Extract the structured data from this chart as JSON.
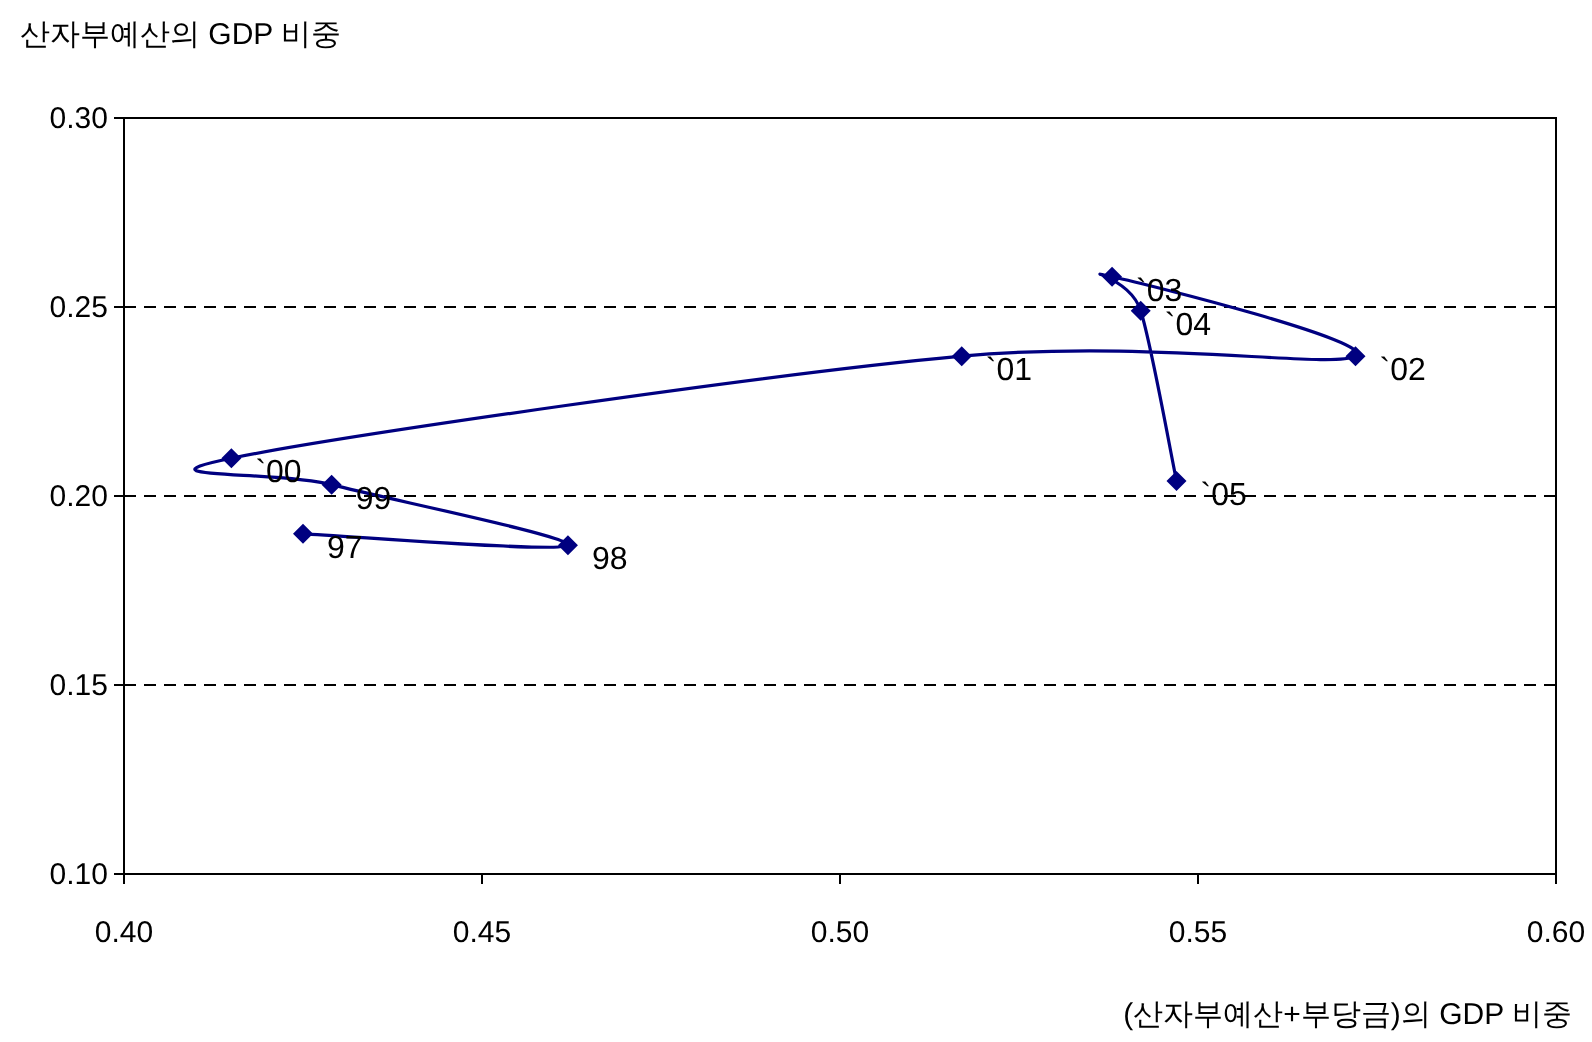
{
  "chart_data": {
    "type": "line",
    "ylabel": "산자부예산의 GDP 비중",
    "xlabel": "(산자부예산+부당금)의 GDP 비중",
    "x": [
      0.425,
      0.462,
      0.429,
      0.415,
      0.517,
      0.572,
      0.538,
      0.542,
      0.547
    ],
    "values": [
      0.19,
      0.187,
      0.203,
      0.21,
      0.237,
      0.237,
      0.258,
      0.249,
      0.204
    ],
    "color": "#000080",
    "marker": "diamond",
    "line_style": "solid",
    "grid": "y",
    "xlim": [
      0.4,
      0.6
    ],
    "ylim": [
      0.1,
      0.3
    ],
    "xticks": [
      {
        "value": 0.4,
        "label": "0.40"
      },
      {
        "value": 0.45,
        "label": "0.45"
      },
      {
        "value": 0.5,
        "label": "0.50"
      },
      {
        "value": 0.55,
        "label": "0.55"
      },
      {
        "value": 0.6,
        "label": "0.60"
      }
    ],
    "yticks": [
      {
        "value": 0.1,
        "label": "0.10"
      },
      {
        "value": 0.15,
        "label": "0.15"
      },
      {
        "value": 0.2,
        "label": "0.20"
      },
      {
        "value": 0.25,
        "label": "0.25"
      },
      {
        "value": 0.3,
        "label": "0.30"
      }
    ],
    "annotations": [
      {
        "text": "97",
        "x": 0.425,
        "y": 0.19
      },
      {
        "text": "98",
        "x": 0.462,
        "y": 0.187
      },
      {
        "text": "99",
        "x": 0.429,
        "y": 0.203
      },
      {
        "text": "`00",
        "x": 0.415,
        "y": 0.21
      },
      {
        "text": "`01",
        "x": 0.517,
        "y": 0.237
      },
      {
        "text": "`02",
        "x": 0.572,
        "y": 0.237
      },
      {
        "text": "`03",
        "x": 0.538,
        "y": 0.258
      },
      {
        "text": "`04",
        "x": 0.542,
        "y": 0.249
      },
      {
        "text": "`05",
        "x": 0.547,
        "y": 0.204
      }
    ]
  }
}
